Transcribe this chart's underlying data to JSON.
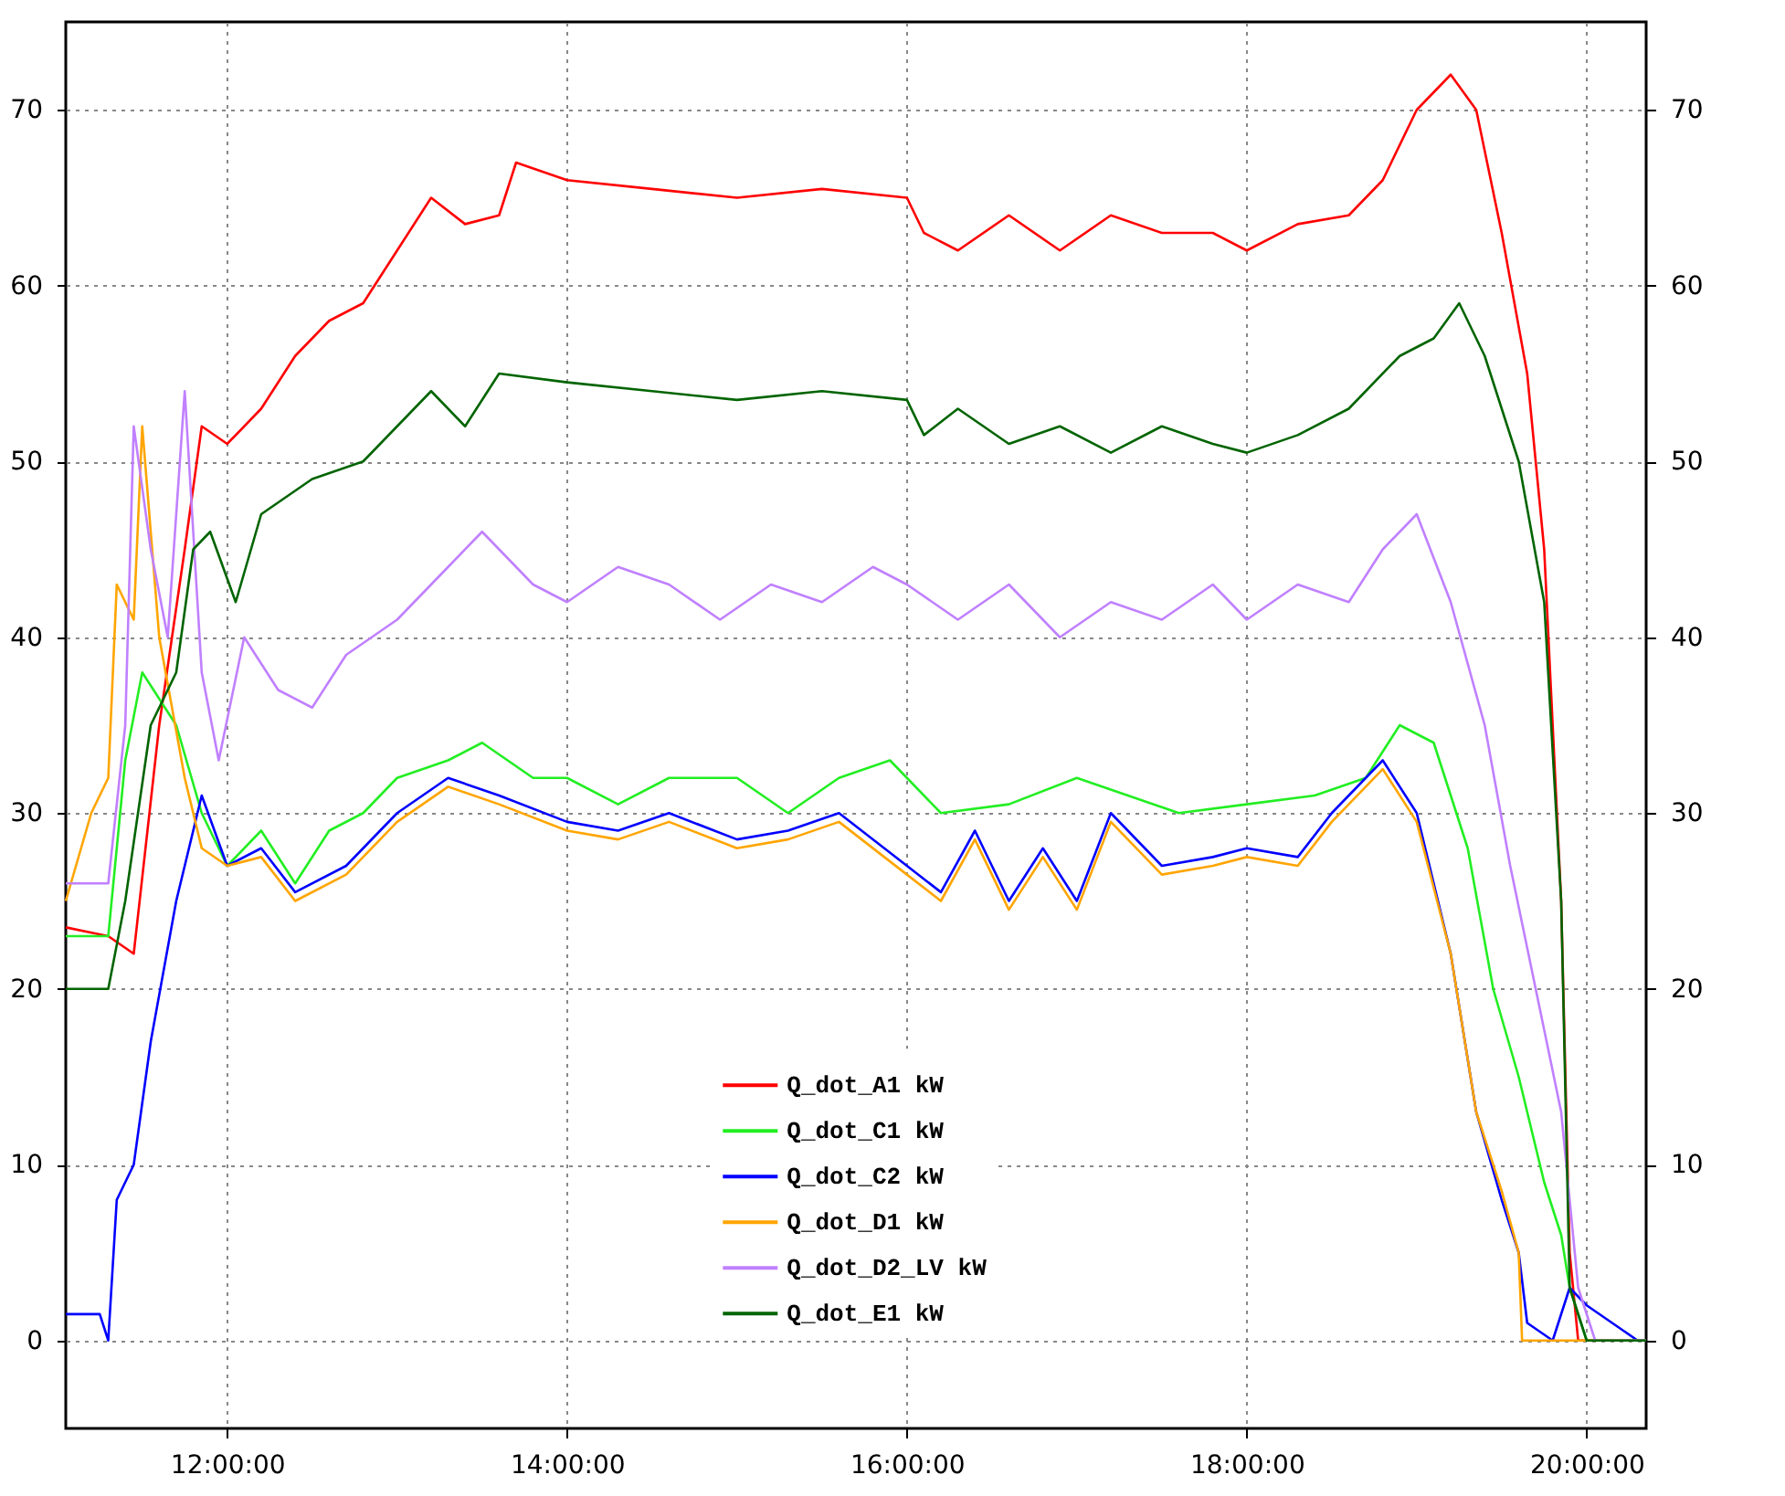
{
  "chart_data": {
    "type": "line",
    "xlim": [
      11.05,
      20.35
    ],
    "xticks": [
      {
        "value": 12,
        "label": "12:00:00"
      },
      {
        "value": 14,
        "label": "14:00:00"
      },
      {
        "value": 16,
        "label": "16:00:00"
      },
      {
        "value": 18,
        "label": "18:00:00"
      },
      {
        "value": 20,
        "label": "20:00:00"
      }
    ],
    "ylim": [
      -5,
      75
    ],
    "yticks": [
      0,
      10,
      20,
      30,
      40,
      50,
      60,
      70
    ],
    "y2lim": [
      -5,
      75
    ],
    "y2ticks": [
      0,
      10,
      20,
      30,
      40,
      50,
      60,
      70
    ],
    "grid": true,
    "legend": "bottom",
    "line_style": "solid",
    "marker": "none",
    "series": [
      {
        "name": "Q_dot_A1 kW",
        "color": "#ff0000",
        "x": [
          11.05,
          11.3,
          11.45,
          11.6,
          11.75,
          11.85,
          12.0,
          12.2,
          12.4,
          12.6,
          12.8,
          13.0,
          13.2,
          13.4,
          13.6,
          13.7,
          14.0,
          14.5,
          15.0,
          15.5,
          16.0,
          16.1,
          16.3,
          16.6,
          16.9,
          17.2,
          17.5,
          17.8,
          18.0,
          18.3,
          18.6,
          18.8,
          19.0,
          19.2,
          19.35,
          19.5,
          19.65,
          19.75,
          19.85,
          19.9,
          19.95,
          20.35
        ],
        "values": [
          23.5,
          23,
          22,
          35,
          45,
          52,
          51,
          53,
          56,
          58,
          59,
          62,
          65,
          63.5,
          64,
          67,
          66,
          65.5,
          65,
          65.5,
          65,
          63,
          62,
          64,
          62,
          64,
          63,
          63,
          62,
          63.5,
          64,
          66,
          70,
          72,
          70,
          63,
          55,
          45,
          25,
          5,
          0,
          0
        ]
      },
      {
        "name": "Q_dot_C1 kW",
        "color": "#22ee22",
        "x": [
          11.05,
          11.3,
          11.4,
          11.5,
          11.7,
          11.85,
          12.0,
          12.2,
          12.4,
          12.6,
          12.8,
          13.0,
          13.3,
          13.5,
          13.8,
          14.0,
          14.3,
          14.6,
          15.0,
          15.3,
          15.6,
          15.9,
          16.0,
          16.2,
          16.6,
          17.0,
          17.3,
          17.6,
          18.0,
          18.4,
          18.7,
          18.9,
          19.1,
          19.3,
          19.45,
          19.6,
          19.75,
          19.85,
          19.9,
          20.0,
          20.35
        ],
        "values": [
          23,
          23,
          33,
          38,
          35,
          30,
          27,
          29,
          26,
          29,
          30,
          32,
          33,
          34,
          32,
          32,
          30.5,
          32,
          32,
          30,
          32,
          33,
          32,
          30,
          30.5,
          32,
          31,
          30,
          30.5,
          31,
          32,
          35,
          34,
          28,
          20,
          15,
          9,
          6,
          3,
          0,
          0
        ]
      },
      {
        "name": "Q_dot_C2 kW",
        "color": "#0000ff",
        "x": [
          11.05,
          11.25,
          11.3,
          11.35,
          11.45,
          11.55,
          11.7,
          11.85,
          12.0,
          12.2,
          12.4,
          12.7,
          13.0,
          13.3,
          13.6,
          14.0,
          14.3,
          14.6,
          15.0,
          15.3,
          15.6,
          16.0,
          16.2,
          16.4,
          16.6,
          16.8,
          17.0,
          17.2,
          17.5,
          17.8,
          18.0,
          18.3,
          18.5,
          18.8,
          19.0,
          19.2,
          19.35,
          19.5,
          19.6,
          19.65,
          19.8,
          19.9,
          20.0,
          20.3,
          20.35
        ],
        "values": [
          1.5,
          1.5,
          0,
          8,
          10,
          17,
          25,
          31,
          27,
          28,
          25.5,
          27,
          30,
          32,
          31,
          29.5,
          29,
          30,
          28.5,
          29,
          30,
          27,
          25.5,
          29,
          25,
          28,
          25,
          30,
          27,
          27.5,
          28,
          27.5,
          30,
          33,
          30,
          22,
          13,
          8,
          5,
          1,
          0,
          3,
          2,
          0,
          0
        ]
      },
      {
        "name": "Q_dot_D1 kW",
        "color": "#ffa500",
        "x": [
          11.05,
          11.2,
          11.3,
          11.35,
          11.45,
          11.5,
          11.6,
          11.75,
          11.85,
          12.0,
          12.2,
          12.4,
          12.7,
          13.0,
          13.3,
          13.6,
          14.0,
          14.3,
          14.6,
          15.0,
          15.3,
          15.6,
          16.0,
          16.2,
          16.4,
          16.6,
          16.8,
          17.0,
          17.2,
          17.5,
          17.8,
          18.0,
          18.3,
          18.5,
          18.8,
          19.0,
          19.2,
          19.35,
          19.5,
          19.6,
          19.62,
          20.35
        ],
        "values": [
          25,
          30,
          32,
          43,
          41,
          52,
          40,
          32,
          28,
          27,
          27.5,
          25,
          26.5,
          29.5,
          31.5,
          30.5,
          29,
          28.5,
          29.5,
          28,
          28.5,
          29.5,
          26.5,
          25,
          28.5,
          24.5,
          27.5,
          24.5,
          29.5,
          26.5,
          27,
          27.5,
          27,
          29.5,
          32.5,
          29.5,
          22,
          13,
          8.5,
          5,
          0,
          0
        ]
      },
      {
        "name": "Q_dot_D2_LV kW",
        "color": "#c080ff",
        "x": [
          11.05,
          11.3,
          11.4,
          11.45,
          11.55,
          11.65,
          11.75,
          11.85,
          11.95,
          12.1,
          12.3,
          12.5,
          12.7,
          13.0,
          13.3,
          13.5,
          13.8,
          14.0,
          14.3,
          14.6,
          14.9,
          15.2,
          15.5,
          15.8,
          16.0,
          16.3,
          16.6,
          16.9,
          17.2,
          17.5,
          17.8,
          18.0,
          18.3,
          18.6,
          18.8,
          19.0,
          19.2,
          19.4,
          19.55,
          19.7,
          19.85,
          19.95,
          20.05,
          20.35
        ],
        "values": [
          26,
          26,
          35,
          52,
          45,
          40,
          54,
          38,
          33,
          40,
          37,
          36,
          39,
          41,
          44,
          46,
          43,
          42,
          44,
          43,
          41,
          43,
          42,
          44,
          43,
          41,
          43,
          40,
          42,
          41,
          43,
          41,
          43,
          42,
          45,
          47,
          42,
          35,
          27,
          20,
          13,
          3,
          0,
          0
        ]
      },
      {
        "name": "Q_dot_E1 kW",
        "color": "#006400",
        "x": [
          11.05,
          11.3,
          11.4,
          11.55,
          11.7,
          11.8,
          11.9,
          12.05,
          12.2,
          12.5,
          12.8,
          13.0,
          13.2,
          13.4,
          13.6,
          14.0,
          14.5,
          15.0,
          15.5,
          16.0,
          16.1,
          16.3,
          16.6,
          16.9,
          17.2,
          17.5,
          17.8,
          18.0,
          18.3,
          18.6,
          18.9,
          19.1,
          19.25,
          19.4,
          19.6,
          19.75,
          19.85,
          19.9,
          20.0,
          20.35
        ],
        "values": [
          20,
          20,
          25,
          35,
          38,
          45,
          46,
          42,
          47,
          49,
          50,
          52,
          54,
          52,
          55,
          54.5,
          54,
          53.5,
          54,
          53.5,
          51.5,
          53,
          51,
          52,
          50.5,
          52,
          51,
          50.5,
          51.5,
          53,
          56,
          57,
          59,
          56,
          50,
          42,
          25,
          3,
          0,
          0
        ]
      }
    ]
  }
}
